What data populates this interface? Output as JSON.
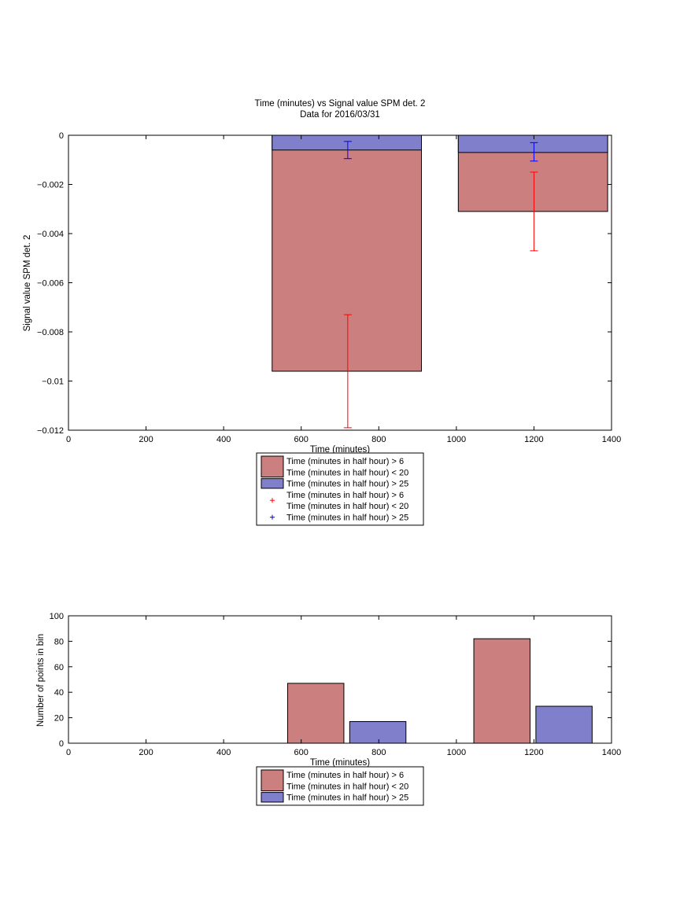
{
  "colors": {
    "red_fill": "#cc7f7f",
    "blue_fill": "#7f7fcc",
    "red_err": "#ff0000",
    "blue_err": "#0000ff",
    "edge": "#000000"
  },
  "chart_data": [
    {
      "type": "bar",
      "title": "Time (minutes) vs Signal value SPM det. 2",
      "subtitle": "Data for 2016/03/31",
      "xlabel": "Time (minutes)",
      "ylabel": "Signal value SPM det. 2",
      "xlim": [
        0,
        1400
      ],
      "ylim": [
        -0.012,
        0
      ],
      "xticks": [
        "0",
        "200",
        "400",
        "600",
        "800",
        "1000",
        "1200",
        "1400"
      ],
      "yticks": [
        "0",
        "−0.002",
        "−0.004",
        "−0.006",
        "−0.008",
        "−0.01",
        "−0.012"
      ],
      "grid": false,
      "legend_position": "below",
      "bars": [
        {
          "series": "Time (minutes in half hour) > 6 Time (minutes in half hour) < 20",
          "x_start": 525,
          "x_end": 910,
          "value": -0.0096
        },
        {
          "series": "Time (minutes in half hour) > 25",
          "x_start": 525,
          "x_end": 910,
          "value": -0.0006
        },
        {
          "series": "Time (minutes in half hour) > 6 Time (minutes in half hour) < 20",
          "x_start": 1005,
          "x_end": 1390,
          "value": -0.0031
        },
        {
          "series": "Time (minutes in half hour) > 25",
          "x_start": 1005,
          "x_end": 1390,
          "value": -0.0007
        }
      ],
      "errorbars": [
        {
          "series": "Time (minutes in half hour) > 6 Time (minutes in half hour) < 20",
          "x": 720,
          "low": -0.0119,
          "high": -0.0073
        },
        {
          "series": "Time (minutes in half hour) > 25",
          "x": 720,
          "low": -0.00095,
          "high": -0.00025
        },
        {
          "series": "Time (minutes in half hour) > 6 Time (minutes in half hour) < 20",
          "x": 1200,
          "low": -0.0047,
          "high": -0.0015
        },
        {
          "series": "Time (minutes in half hour) > 25",
          "x": 1200,
          "low": -0.00105,
          "high": -0.0003
        }
      ],
      "legend": [
        {
          "kind": "patch",
          "color": "red",
          "lines": [
            "Time (minutes in half hour) > 6",
            "Time (minutes in half hour) < 20"
          ]
        },
        {
          "kind": "patch",
          "color": "blue",
          "lines": [
            "Time (minutes in half hour) > 25"
          ]
        },
        {
          "kind": "marker",
          "color": "red",
          "lines": [
            "Time (minutes in half hour) > 6",
            "Time (minutes in half hour) < 20"
          ]
        },
        {
          "kind": "marker",
          "color": "blue",
          "lines": [
            "Time (minutes in half hour) > 25"
          ]
        }
      ]
    },
    {
      "type": "bar",
      "title": "",
      "xlabel": "Time (minutes)",
      "ylabel": "Number of points in bin",
      "xlim": [
        0,
        1400
      ],
      "ylim": [
        0,
        100
      ],
      "xticks": [
        "0",
        "200",
        "400",
        "600",
        "800",
        "1000",
        "1200",
        "1400"
      ],
      "yticks": [
        "100",
        "80",
        "60",
        "40",
        "20",
        "0"
      ],
      "grid": false,
      "legend_position": "below",
      "bars": [
        {
          "series": "Time (minutes in half hour) > 6 Time (minutes in half hour) < 20",
          "x_start": 565,
          "x_end": 710,
          "value": 47
        },
        {
          "series": "Time (minutes in half hour) > 25",
          "x_start": 725,
          "x_end": 870,
          "value": 17
        },
        {
          "series": "Time (minutes in half hour) > 6 Time (minutes in half hour) < 20",
          "x_start": 1045,
          "x_end": 1190,
          "value": 82
        },
        {
          "series": "Time (minutes in half hour) > 25",
          "x_start": 1205,
          "x_end": 1350,
          "value": 29
        }
      ],
      "legend": [
        {
          "kind": "patch",
          "color": "red",
          "lines": [
            "Time (minutes in half hour) > 6",
            "Time (minutes in half hour) < 20"
          ]
        },
        {
          "kind": "patch",
          "color": "blue",
          "lines": [
            "Time (minutes in half hour) > 25"
          ]
        }
      ]
    }
  ]
}
